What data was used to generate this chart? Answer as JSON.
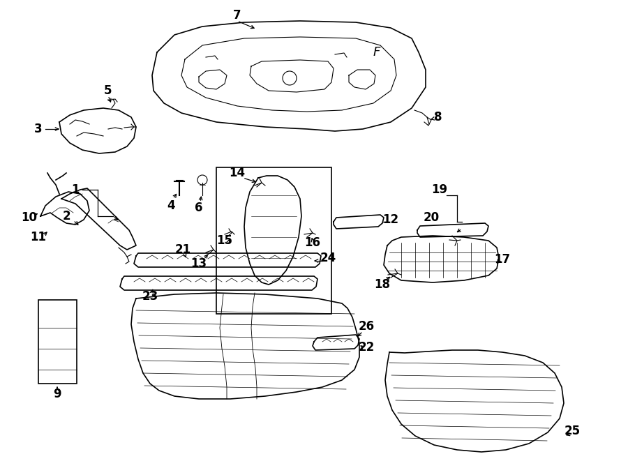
{
  "bg_color": "#ffffff",
  "line_color": "#000000",
  "fig_width": 9.0,
  "fig_height": 6.61,
  "dpi": 100,
  "parts_layout": "cab_interior_trim_2005_trailblazer_ext"
}
